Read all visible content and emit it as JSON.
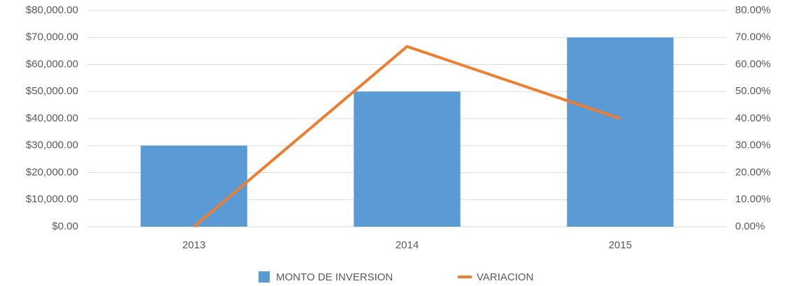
{
  "chart_data": {
    "type": "bar",
    "categories": [
      "2013",
      "2014",
      "2015"
    ],
    "series": [
      {
        "name": "MONTO DE INVERSION",
        "type": "bar",
        "color": "#5b9bd5",
        "values": [
          30000,
          50000,
          70000
        ]
      },
      {
        "name": "VARIACION",
        "type": "line",
        "axis": "y2",
        "color": "#ed7d31",
        "values": [
          0,
          66.67,
          40
        ]
      }
    ],
    "ylim": [
      0,
      80000
    ],
    "yticks": [
      {
        "value": 0,
        "label": "$0.00"
      },
      {
        "value": 10000,
        "label": "$10,000.00"
      },
      {
        "value": 20000,
        "label": "$20,000.00"
      },
      {
        "value": 30000,
        "label": "$30,000.00"
      },
      {
        "value": 40000,
        "label": "$40,000.00"
      },
      {
        "value": 50000,
        "label": "$50,000.00"
      },
      {
        "value": 60000,
        "label": "$60,000.00"
      },
      {
        "value": 70000,
        "label": "$70,000.00"
      },
      {
        "value": 80000,
        "label": "$80,000.00"
      }
    ],
    "y2lim": [
      0,
      80
    ],
    "y2ticks": [
      {
        "value": 0,
        "label": "0.00%"
      },
      {
        "value": 10,
        "label": "10.00%"
      },
      {
        "value": 20,
        "label": "20.00%"
      },
      {
        "value": 30,
        "label": "30.00%"
      },
      {
        "value": 40,
        "label": "40.00%"
      },
      {
        "value": 50,
        "label": "50.00%"
      },
      {
        "value": 60,
        "label": "60.00%"
      },
      {
        "value": 70,
        "label": "70.00%"
      },
      {
        "value": 80,
        "label": "80.00%"
      }
    ],
    "grid": true,
    "legend": "bottom"
  }
}
